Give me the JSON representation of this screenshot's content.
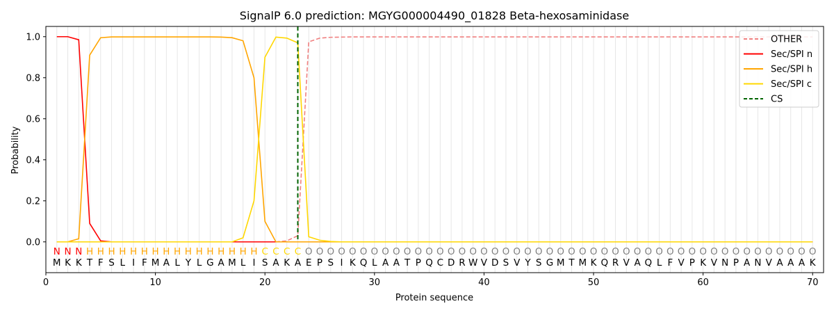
{
  "chart_data": {
    "type": "line",
    "title": "SignalP 6.0 prediction: MGYG000004490_01828 Beta-hexosaminidase",
    "xlabel": "Protein sequence",
    "ylabel": "Probability",
    "xlim": [
      0,
      71
    ],
    "ylim": [
      -0.15,
      1.05
    ],
    "xticks": [
      0,
      10,
      20,
      30,
      40,
      50,
      60,
      70
    ],
    "yticks": [
      0.0,
      0.2,
      0.4,
      0.6,
      0.8,
      1.0
    ],
    "grid": "vertical lines at each residue",
    "legend_position": "top-right",
    "sequence": [
      "M",
      "K",
      "K",
      "T",
      "F",
      "S",
      "L",
      "I",
      "F",
      "M",
      "A",
      "L",
      "Y",
      "L",
      "G",
      "A",
      "M",
      "L",
      "I",
      "S",
      "A",
      "K",
      "A",
      "E",
      "P",
      "S",
      "I",
      "K",
      "Q",
      "L",
      "A",
      "A",
      "T",
      "P",
      "Q",
      "C",
      "D",
      "R",
      "W",
      "V",
      "D",
      "S",
      "V",
      "Y",
      "S",
      "G",
      "M",
      "T",
      "M",
      "K",
      "Q",
      "R",
      "V",
      "A",
      "Q",
      "L",
      "F",
      "V",
      "P",
      "K",
      "V",
      "N",
      "P",
      "A",
      "N",
      "V",
      "A",
      "A",
      "A",
      "K"
    ],
    "labels": [
      "N",
      "N",
      "N",
      "H",
      "H",
      "H",
      "H",
      "H",
      "H",
      "H",
      "H",
      "H",
      "H",
      "H",
      "H",
      "H",
      "H",
      "H",
      "H",
      "C",
      "C",
      "C",
      "C",
      "O",
      "O",
      "O",
      "O",
      "O",
      "O",
      "O",
      "O",
      "O",
      "O",
      "O",
      "O",
      "O",
      "O",
      "O",
      "O",
      "O",
      "O",
      "O",
      "O",
      "O",
      "O",
      "O",
      "O",
      "O",
      "O",
      "O",
      "O",
      "O",
      "O",
      "O",
      "O",
      "O",
      "O",
      "O",
      "O",
      "O",
      "O",
      "O",
      "O",
      "O",
      "O",
      "O",
      "O",
      "O",
      "O",
      "O"
    ],
    "label_colors": {
      "N": "#ff0000",
      "H": "#ffa500",
      "C": "#ffd700",
      "O": "#808080"
    },
    "cleavage_site": 23,
    "series": [
      {
        "name": "OTHER",
        "color": "#f08080",
        "style": "dashed",
        "values": [
          0,
          0,
          0,
          0,
          0,
          0,
          0,
          0,
          0,
          0,
          0,
          0,
          0,
          0,
          0,
          0,
          0,
          0,
          0,
          0,
          0,
          0.005,
          0.03,
          0.975,
          0.993,
          0.997,
          0.998,
          0.999,
          0.999,
          0.999,
          0.999,
          0.999,
          0.999,
          0.999,
          0.999,
          0.999,
          0.999,
          0.999,
          0.999,
          0.999,
          0.999,
          0.999,
          0.999,
          0.999,
          0.999,
          0.999,
          0.999,
          0.999,
          0.999,
          0.999,
          0.999,
          0.999,
          0.999,
          0.999,
          0.999,
          0.999,
          0.999,
          0.999,
          0.999,
          0.999,
          0.999,
          0.999,
          0.999,
          0.999,
          0.999,
          0.999,
          0.999,
          0.999,
          0.999,
          0.999
        ]
      },
      {
        "name": "Sec/SPI n",
        "color": "#ff0000",
        "style": "solid",
        "values": [
          1.0,
          1.0,
          0.985,
          0.09,
          0.005,
          0,
          0,
          0,
          0,
          0,
          0,
          0,
          0,
          0,
          0,
          0,
          0,
          0,
          0,
          0,
          0,
          0,
          0,
          0,
          0,
          0,
          0,
          0,
          0,
          0,
          0,
          0,
          0,
          0,
          0,
          0,
          0,
          0,
          0,
          0,
          0,
          0,
          0,
          0,
          0,
          0,
          0,
          0,
          0,
          0,
          0,
          0,
          0,
          0,
          0,
          0,
          0,
          0,
          0,
          0,
          0,
          0,
          0,
          0,
          0,
          0,
          0,
          0,
          0,
          0
        ]
      },
      {
        "name": "Sec/SPI h",
        "color": "#ffa500",
        "style": "solid",
        "values": [
          0,
          0,
          0.015,
          0.91,
          0.995,
          0.999,
          0.999,
          0.999,
          0.999,
          0.999,
          0.999,
          0.999,
          0.999,
          0.999,
          0.999,
          0.998,
          0.995,
          0.98,
          0.8,
          0.1,
          0,
          0,
          0,
          0,
          0,
          0,
          0,
          0,
          0,
          0,
          0,
          0,
          0,
          0,
          0,
          0,
          0,
          0,
          0,
          0,
          0,
          0,
          0,
          0,
          0,
          0,
          0,
          0,
          0,
          0,
          0,
          0,
          0,
          0,
          0,
          0,
          0,
          0,
          0,
          0,
          0,
          0,
          0,
          0,
          0,
          0,
          0,
          0,
          0,
          0
        ]
      },
      {
        "name": "Sec/SPI c",
        "color": "#ffd700",
        "style": "solid",
        "values": [
          0,
          0,
          0,
          0,
          0,
          0,
          0,
          0,
          0,
          0,
          0,
          0,
          0,
          0,
          0,
          0,
          0,
          0.02,
          0.2,
          0.9,
          0.998,
          0.993,
          0.97,
          0.025,
          0.008,
          0.002,
          0,
          0,
          0,
          0,
          0,
          0,
          0,
          0,
          0,
          0,
          0,
          0,
          0,
          0,
          0,
          0,
          0,
          0,
          0,
          0,
          0,
          0,
          0,
          0,
          0,
          0,
          0,
          0,
          0,
          0,
          0,
          0,
          0,
          0,
          0,
          0,
          0,
          0,
          0,
          0,
          0,
          0,
          0,
          0
        ]
      },
      {
        "name": "CS",
        "color": "#006400",
        "style": "dashed",
        "vertical_at": 23
      }
    ]
  }
}
